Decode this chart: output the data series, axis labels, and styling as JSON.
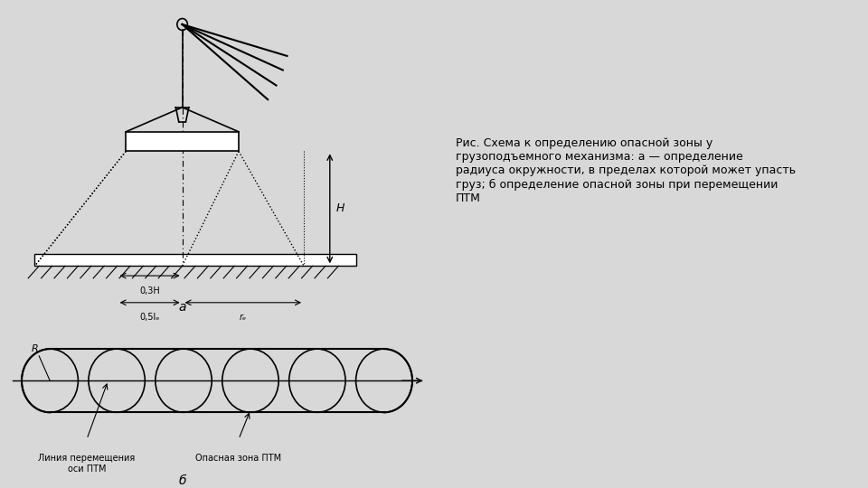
{
  "bg_color": "#d8d8d8",
  "diagram_bg": "#ffffff",
  "line_color": "#000000",
  "hatch_color": "#000000",
  "text_color": "#000000",
  "caption_text": "Рис. Схема к определению опасной зоны у\nгрузоподъемного механизма: а — определение\nрадиуса окружности, в пределах которой может упасть\nгруз; б определение опасной зоны при перемещении\nПТМ",
  "label_a": "а",
  "label_b": "б",
  "label_03H": "0,3H",
  "label_051": "0,5lₑ",
  "label_rc": "rₑ",
  "label_H": "H",
  "label_R": "R",
  "label_line": "Линия перемещения\nоси ПТМ",
  "label_zone": "Опасная зона ПТМ"
}
